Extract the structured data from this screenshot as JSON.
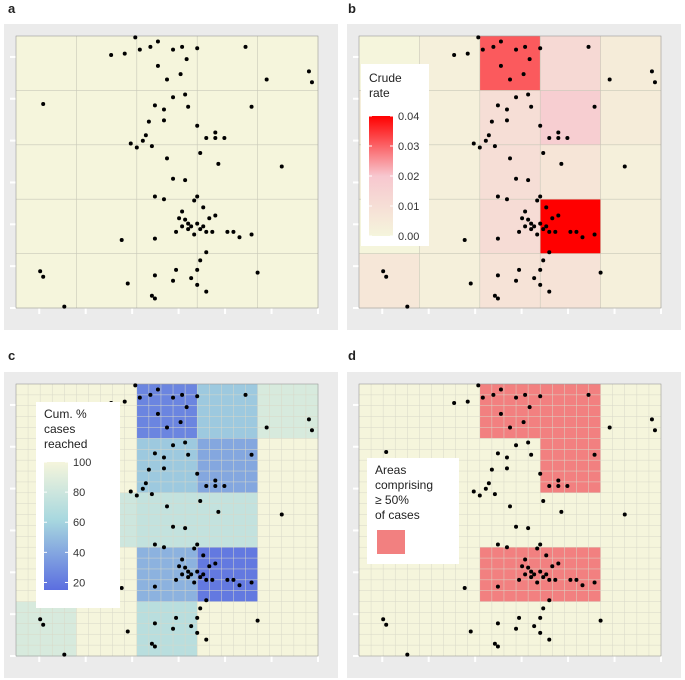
{
  "chart_data": [
    {
      "panel": "a",
      "type": "scatter",
      "description_title": "",
      "fill": "uniform",
      "legend": null
    },
    {
      "panel": "b",
      "type": "heatmap",
      "fill": "crude_rate",
      "grid": {
        "cols": 5,
        "rows": 5
      },
      "legend": {
        "title": [
          "Crude",
          "rate"
        ],
        "ticks": [
          "0.04",
          "0.03",
          "0.02",
          "0.01",
          "0.00"
        ],
        "tick_values": [
          0.04,
          0.03,
          0.02,
          0.01,
          0.0
        ],
        "range": [
          0,
          0.04
        ],
        "low_color": "#f5f5dc",
        "high_color": "#ff0000"
      },
      "cell_values": [
        [
          0.0,
          0.002,
          0.031,
          0.012,
          0.004
        ],
        [
          0.003,
          0.002,
          0.01,
          0.017,
          0.004
        ],
        [
          0.002,
          0.002,
          0.01,
          0.007,
          0.002
        ],
        [
          0.0,
          0.002,
          0.011,
          0.04,
          0.002
        ],
        [
          0.006,
          0.002,
          0.008,
          0.008,
          0.002
        ]
      ]
    },
    {
      "panel": "c",
      "type": "heatmap",
      "fill": "cumulative_percent_cases_reached",
      "grid": {
        "cols": 5,
        "rows": 5
      },
      "legend": {
        "title": [
          "Cum. %",
          "cases",
          "reached"
        ],
        "ticks": [
          "100",
          "80",
          "60",
          "40",
          "20"
        ],
        "tick_values": [
          100,
          80,
          60,
          40,
          20
        ],
        "range": [
          15,
          100
        ],
        "low_color": "#5b6ee0",
        "mid_color": "#a8d8df",
        "high_color": "#f5f5dc"
      },
      "cell_values": [
        [
          100,
          100,
          25,
          55,
          85
        ],
        [
          100,
          100,
          55,
          40,
          100
        ],
        [
          100,
          80,
          75,
          75,
          100
        ],
        [
          100,
          100,
          45,
          20,
          100
        ],
        [
          85,
          100,
          70,
          100,
          100
        ]
      ]
    },
    {
      "panel": "d",
      "type": "heatmap",
      "fill": "areas_comprising_50pct_cases",
      "grid": {
        "cols": 5,
        "rows": 5
      },
      "legend": {
        "title": [
          "Areas",
          "comprising",
          "≥ 50%",
          "of cases"
        ],
        "swatch_color": "#f28080"
      },
      "highlight_cells": [
        [
          0,
          2
        ],
        [
          0,
          3
        ],
        [
          1,
          3
        ],
        [
          3,
          2
        ],
        [
          3,
          3
        ]
      ],
      "highlight_color": "#f28080",
      "base_color": "#f5f5dc"
    }
  ],
  "points": [
    [
      0.395,
      0.005
    ],
    [
      0.315,
      0.07
    ],
    [
      0.36,
      0.065
    ],
    [
      0.41,
      0.05
    ],
    [
      0.445,
      0.04
    ],
    [
      0.47,
      0.02
    ],
    [
      0.52,
      0.05
    ],
    [
      0.55,
      0.04
    ],
    [
      0.6,
      0.045
    ],
    [
      0.565,
      0.085
    ],
    [
      0.47,
      0.11
    ],
    [
      0.545,
      0.14
    ],
    [
      0.5,
      0.16
    ],
    [
      0.76,
      0.04
    ],
    [
      0.83,
      0.16
    ],
    [
      0.97,
      0.13
    ],
    [
      0.98,
      0.17
    ],
    [
      0.52,
      0.225
    ],
    [
      0.56,
      0.215
    ],
    [
      0.57,
      0.26
    ],
    [
      0.78,
      0.26
    ],
    [
      0.09,
      0.25
    ],
    [
      0.46,
      0.255
    ],
    [
      0.49,
      0.27
    ],
    [
      0.49,
      0.31
    ],
    [
      0.6,
      0.33
    ],
    [
      0.66,
      0.355
    ],
    [
      0.69,
      0.375
    ],
    [
      0.66,
      0.375
    ],
    [
      0.63,
      0.375
    ],
    [
      0.44,
      0.315
    ],
    [
      0.43,
      0.365
    ],
    [
      0.42,
      0.385
    ],
    [
      0.4,
      0.41
    ],
    [
      0.38,
      0.395
    ],
    [
      0.45,
      0.405
    ],
    [
      0.61,
      0.43
    ],
    [
      0.67,
      0.47
    ],
    [
      0.88,
      0.48
    ],
    [
      0.56,
      0.53
    ],
    [
      0.5,
      0.45
    ],
    [
      0.52,
      0.525
    ],
    [
      0.46,
      0.59
    ],
    [
      0.49,
      0.6
    ],
    [
      0.55,
      0.645
    ],
    [
      0.59,
      0.605
    ],
    [
      0.6,
      0.59
    ],
    [
      0.62,
      0.63
    ],
    [
      0.64,
      0.67
    ],
    [
      0.62,
      0.7
    ],
    [
      0.54,
      0.67
    ],
    [
      0.56,
      0.675
    ],
    [
      0.57,
      0.69
    ],
    [
      0.58,
      0.7
    ],
    [
      0.6,
      0.69
    ],
    [
      0.61,
      0.71
    ],
    [
      0.63,
      0.72
    ],
    [
      0.65,
      0.72
    ],
    [
      0.66,
      0.66
    ],
    [
      0.7,
      0.72
    ],
    [
      0.72,
      0.72
    ],
    [
      0.74,
      0.74
    ],
    [
      0.78,
      0.73
    ],
    [
      0.53,
      0.72
    ],
    [
      0.55,
      0.7
    ],
    [
      0.57,
      0.71
    ],
    [
      0.59,
      0.73
    ],
    [
      0.63,
      0.795
    ],
    [
      0.61,
      0.825
    ],
    [
      0.6,
      0.86
    ],
    [
      0.46,
      0.745
    ],
    [
      0.35,
      0.75
    ],
    [
      0.46,
      0.88
    ],
    [
      0.53,
      0.86
    ],
    [
      0.52,
      0.9
    ],
    [
      0.58,
      0.89
    ],
    [
      0.6,
      0.915
    ],
    [
      0.63,
      0.94
    ],
    [
      0.37,
      0.91
    ],
    [
      0.45,
      0.955
    ],
    [
      0.46,
      0.965
    ],
    [
      0.8,
      0.87
    ],
    [
      0.16,
      0.995
    ],
    [
      0.08,
      0.865
    ],
    [
      0.09,
      0.885
    ]
  ]
}
